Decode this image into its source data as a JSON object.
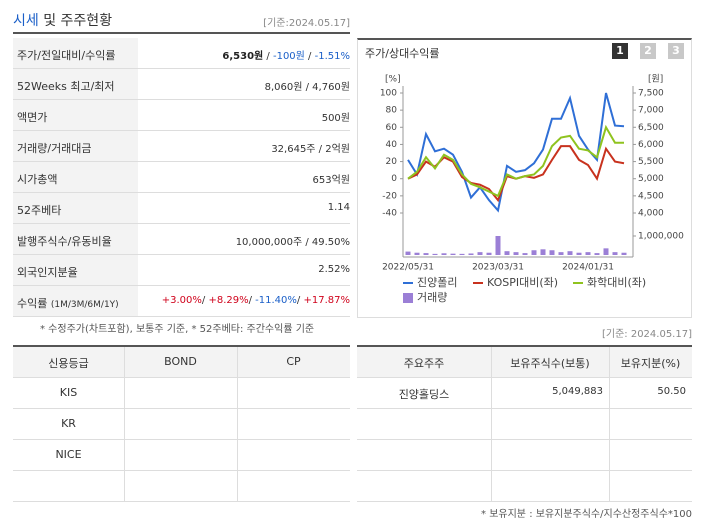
{
  "header": {
    "title": "시세",
    "title_rest": "및 주주현황",
    "date": "[기준:2024.05.17]"
  },
  "quote_table": {
    "rows": [
      {
        "label": "주가/전일대비/수익률",
        "value": [
          "6,530원",
          " / ",
          "-100원",
          " / ",
          "-1.51%"
        ],
        "tones": [
          "bold",
          "plain",
          "down",
          "plain",
          "down"
        ]
      },
      {
        "label": "52Weeks 최고/최저",
        "value": [
          "8,060원 / 4,760원"
        ],
        "tones": [
          "plain"
        ]
      },
      {
        "label": "액면가",
        "value": [
          "500원"
        ],
        "tones": [
          "plain"
        ]
      },
      {
        "label": "거래량/거래대금",
        "value": [
          "32,645주 / 2억원"
        ],
        "tones": [
          "plain"
        ]
      },
      {
        "label": "시가총액",
        "value": [
          "653억원"
        ],
        "tones": [
          "plain"
        ]
      },
      {
        "label": "52주베타",
        "value": [
          "1.14"
        ],
        "tones": [
          "plain"
        ]
      },
      {
        "label": "발행주식수/유동비율",
        "value": [
          "10,000,000주 / 49.50%"
        ],
        "tones": [
          "plain"
        ]
      },
      {
        "label": "외국인지분율",
        "value": [
          "2.52%"
        ],
        "tones": [
          "plain"
        ]
      },
      {
        "label": "수익률",
        "label_note": "(1M/3M/6M/1Y)",
        "value": [
          "+3.00%",
          "/ ",
          "+8.29%",
          "/ ",
          "-11.40%",
          "/ ",
          "+17.87%"
        ],
        "tones": [
          "up",
          "plain",
          "up",
          "plain",
          "down",
          "plain",
          "up"
        ]
      }
    ],
    "note": "* 수정주가(차트포함), 보통주 기준, * 52주베타: 주간수익률 기준"
  },
  "chart_panel": {
    "title": "주가/상대수익률",
    "tabs": [
      "1",
      "2",
      "3"
    ]
  },
  "chart_data": {
    "type": "line",
    "categories": [
      "2022/05/31",
      null,
      null,
      null,
      null,
      null,
      null,
      null,
      null,
      null,
      "2023/03/31",
      null,
      null,
      null,
      null,
      null,
      null,
      null,
      null,
      null,
      "2024/01/31",
      null,
      null,
      null,
      null
    ],
    "y_unit": "[%]",
    "ylim": [
      -40,
      100
    ],
    "yticks": [
      -40,
      -20,
      0,
      20,
      40,
      60,
      80,
      100
    ],
    "y2_unit": "[원]",
    "y2lim": [
      4000,
      7500
    ],
    "y2ticks": [
      {
        "value": 4000,
        "label": "4,000"
      },
      {
        "value": 4500,
        "label": "4,500"
      },
      {
        "value": 5000,
        "label": "5,000"
      },
      {
        "value": 5500,
        "label": "5,500"
      },
      {
        "value": 6000,
        "label": "6,000"
      },
      {
        "value": 6500,
        "label": "6,500"
      },
      {
        "value": 7000,
        "label": "7,000"
      },
      {
        "value": 7500,
        "label": "7,500"
      }
    ],
    "y3lim": [
      0,
      1000000
    ],
    "y3ticks": [
      {
        "value": 1000000,
        "label": "1,000,000"
      }
    ],
    "series": [
      {
        "name": "진양폴리",
        "color": "#2f6fd6",
        "axis": "y2",
        "values": [
          5550,
          5125,
          6300,
          5800,
          5875,
          5700,
          5200,
          4450,
          4750,
          4375,
          4075,
          5375,
          5200,
          5250,
          5450,
          5850,
          6750,
          6750,
          7350,
          6250,
          5850,
          5550,
          7500,
          6550,
          6530
        ]
      },
      {
        "name": "KOSPI대비(좌)",
        "color": "#c8321e",
        "values": [
          0,
          5,
          20,
          14,
          25,
          20,
          2,
          -5,
          -7,
          -12,
          -25,
          3,
          0,
          3,
          1,
          5,
          22,
          38,
          38,
          22,
          16,
          0,
          35,
          20,
          18
        ]
      },
      {
        "name": "화학대비(좌)",
        "color": "#8fc31f",
        "values": [
          0,
          8,
          25,
          12,
          28,
          22,
          5,
          -6,
          -10,
          -15,
          -20,
          5,
          0,
          3,
          5,
          15,
          38,
          48,
          50,
          35,
          33,
          25,
          60,
          42,
          42
        ]
      },
      {
        "name": "거래량",
        "color": "#9b7fd6",
        "type": "bar",
        "axis": "y3",
        "values": [
          180000,
          120000,
          100000,
          60000,
          90000,
          70000,
          60000,
          80000,
          150000,
          120000,
          1000000,
          200000,
          150000,
          100000,
          250000,
          300000,
          250000,
          150000,
          200000,
          120000,
          150000,
          100000,
          350000,
          150000,
          120000
        ]
      }
    ]
  },
  "credit_table": {
    "headers": [
      "신용등급",
      "BOND",
      "CP"
    ],
    "rows": [
      "KIS",
      "KR",
      "NICE"
    ]
  },
  "holder_table": {
    "date": "[기준: 2024.05.17]",
    "headers": [
      "주요주주",
      "보유주식수(보통)",
      "보유지분(%)"
    ],
    "rows": [
      [
        "진양홀딩스",
        "5,049,883",
        "50.50"
      ]
    ],
    "note": "* 보유지분 : 보유지분주식수/지수산정주식수*100"
  }
}
